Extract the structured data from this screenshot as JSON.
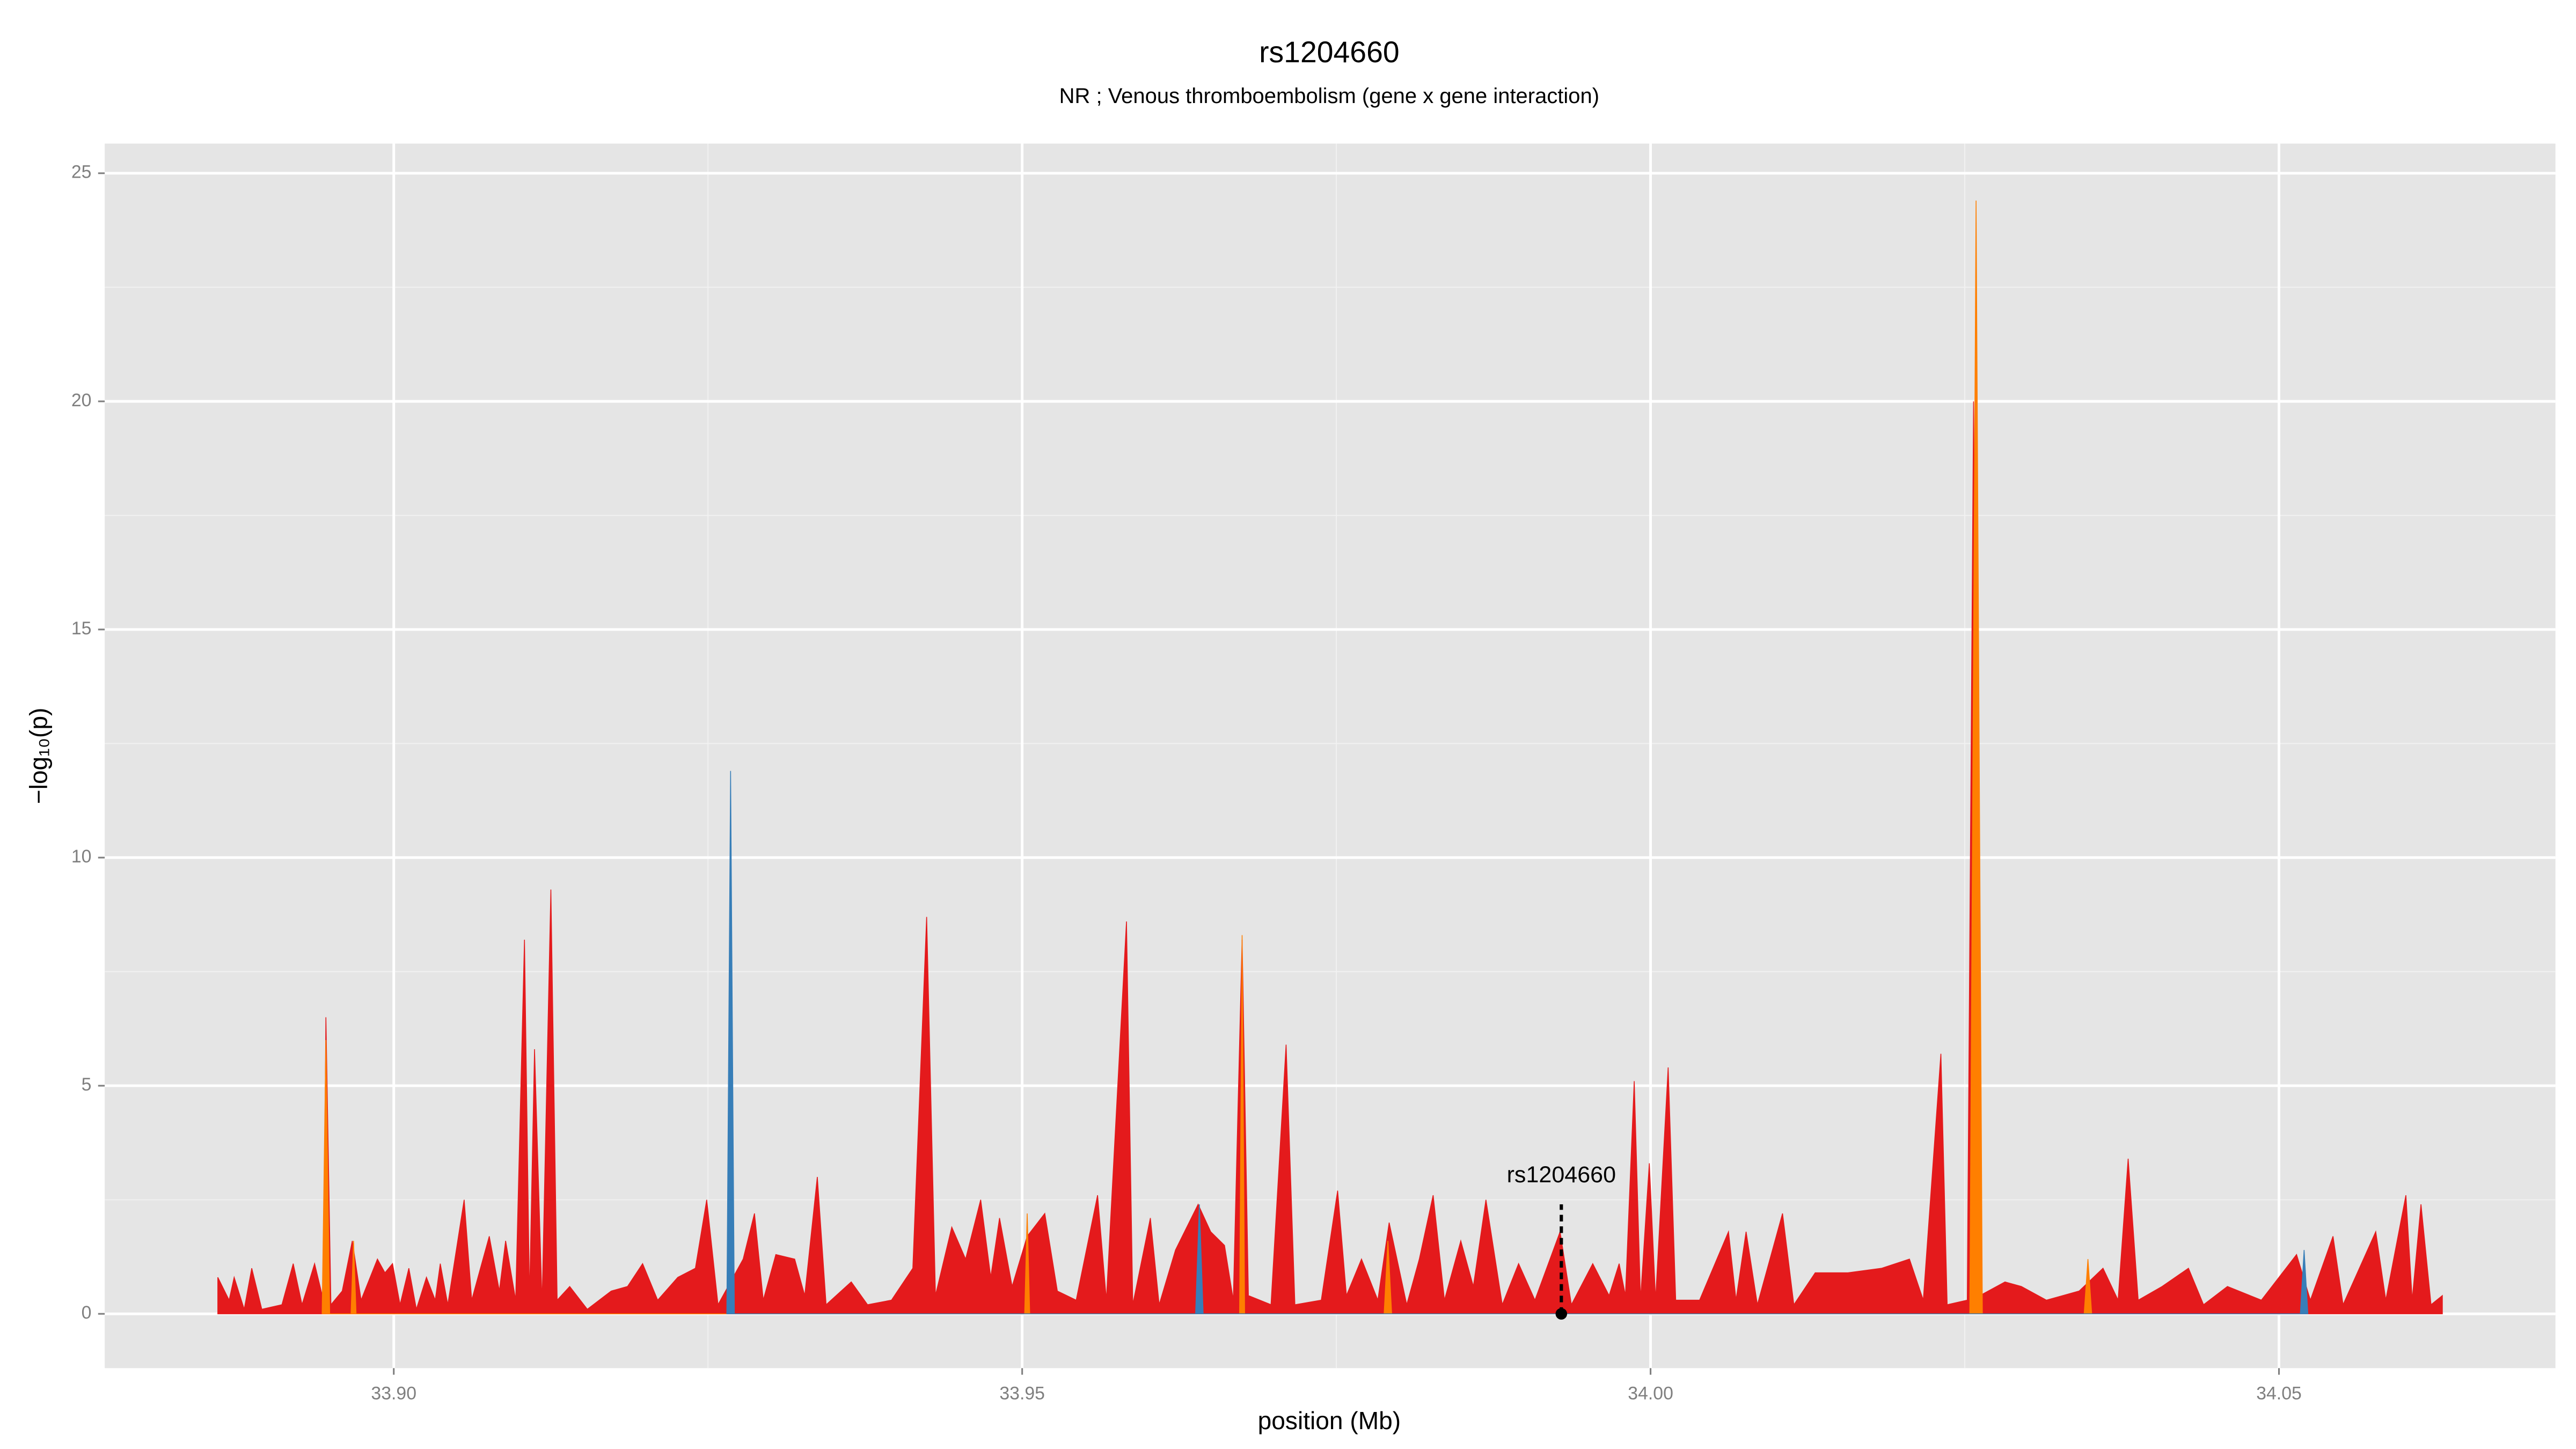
{
  "chart_data": {
    "type": "area",
    "title": "rs1204660",
    "subtitle": "NR ; Venous thromboembolism (gene x gene interaction)",
    "x_label": "position (Mb)",
    "y_label": "−log₁₀(p)",
    "xlim": [
      33.877,
      34.072
    ],
    "ylim": [
      -1.19,
      25.65
    ],
    "xticks": [
      {
        "value": 33.9,
        "label": "33.90"
      },
      33.95,
      {
        "value": 34.0,
        "label": "34.00"
      },
      34.05
    ],
    "yticks": [
      0,
      5,
      10,
      15,
      20,
      25
    ],
    "grid": true,
    "series": [
      {
        "color": "#e41a1c",
        "x": [
          33.886,
          33.8869,
          33.8873,
          33.8881,
          33.8887,
          33.8895,
          33.8911,
          33.892,
          33.8927,
          33.8937,
          33.8944,
          33.8946,
          33.895,
          33.8959,
          33.8967,
          33.8974,
          33.8987,
          33.8993,
          33.8999,
          33.9005,
          33.9012,
          33.9018,
          33.9026,
          33.9033,
          33.9037,
          33.9043,
          33.9056,
          33.9062,
          33.9076,
          33.9084,
          33.9089,
          33.9097,
          33.9104,
          33.9108,
          33.9112,
          33.9118,
          33.9125,
          33.913,
          33.914,
          33.9154,
          33.9173,
          33.9186,
          33.9198,
          33.921,
          33.9226,
          33.924,
          33.9249,
          33.9258,
          33.9278,
          33.9287,
          33.9294,
          33.9304,
          33.9319,
          33.9327,
          33.9337,
          33.9344,
          33.9364,
          33.9377,
          33.9396,
          33.9413,
          33.9424,
          33.9431,
          33.9444,
          33.9455,
          33.9467,
          33.9475,
          33.9482,
          33.9492,
          33.9504,
          33.9518,
          33.9528,
          33.9543,
          33.956,
          33.9567,
          33.9583,
          33.9588,
          33.9602,
          33.9609,
          33.9622,
          33.964,
          33.965,
          33.9661,
          33.9668,
          33.9675,
          33.968,
          33.9698,
          33.971,
          33.9717,
          33.9738,
          33.9751,
          33.9758,
          33.977,
          33.9783,
          33.9792,
          33.9806,
          33.9816,
          33.9827,
          33.9836,
          33.9849,
          33.9859,
          33.9869,
          33.9882,
          33.9895,
          33.9908,
          33.9928,
          33.9937,
          33.9954,
          33.9967,
          33.9975,
          33.998,
          33.9987,
          33.9992,
          33.9999,
          34.0004,
          34.0014,
          34.002,
          34.0039,
          34.0062,
          34.0068,
          34.0076,
          34.0085,
          34.0105,
          34.0114,
          34.0131,
          34.0157,
          34.0184,
          34.0206,
          34.0217,
          34.0231,
          34.0236,
          34.0252,
          34.0257,
          34.0262,
          34.0282,
          34.0295,
          34.0315,
          34.0341,
          34.036,
          34.0372,
          34.038,
          34.0388,
          34.0407,
          34.0428,
          34.044,
          34.0459,
          34.0486,
          34.0514,
          34.0525,
          34.0543,
          34.0551,
          34.0564,
          34.0577,
          34.0585,
          34.0601,
          34.0606,
          34.0613,
          34.0621,
          34.063
        ],
        "values": [
          0.8,
          0.3,
          0.8,
          0.1,
          1.0,
          0.1,
          0.2,
          1.1,
          0.2,
          1.1,
          0.3,
          6.5,
          0.2,
          0.5,
          1.6,
          0.3,
          1.2,
          0.9,
          1.1,
          0.2,
          1.0,
          0.1,
          0.8,
          0.3,
          1.1,
          0.2,
          2.5,
          0.3,
          1.7,
          0.5,
          1.6,
          0.3,
          8.2,
          0.3,
          5.8,
          0.2,
          9.3,
          0.3,
          0.6,
          0.1,
          0.5,
          0.6,
          1.1,
          0.3,
          0.8,
          1.0,
          2.5,
          0.2,
          1.2,
          2.2,
          0.3,
          1.3,
          1.2,
          0.4,
          3.0,
          0.2,
          0.7,
          0.2,
          0.3,
          1.0,
          8.7,
          0.4,
          1.9,
          1.2,
          2.5,
          0.8,
          2.1,
          0.6,
          1.7,
          2.2,
          0.5,
          0.3,
          2.6,
          0.3,
          8.6,
          0.2,
          2.1,
          0.2,
          1.4,
          2.4,
          1.8,
          1.5,
          0.3,
          8.2,
          0.4,
          0.2,
          5.9,
          0.2,
          0.3,
          2.7,
          0.4,
          1.2,
          0.3,
          2.0,
          0.2,
          1.2,
          2.6,
          0.3,
          1.6,
          0.6,
          2.5,
          0.2,
          1.1,
          0.3,
          1.8,
          0.2,
          1.1,
          0.4,
          1.1,
          0.4,
          5.1,
          0.3,
          3.3,
          0.3,
          5.4,
          0.3,
          0.3,
          1.8,
          0.3,
          1.8,
          0.2,
          2.2,
          0.2,
          0.9,
          0.9,
          1.0,
          1.2,
          0.3,
          5.7,
          0.2,
          0.3,
          20.0,
          0.4,
          0.7,
          0.6,
          0.3,
          0.5,
          1.0,
          0.3,
          3.4,
          0.3,
          0.6,
          1.0,
          0.2,
          0.6,
          0.3,
          1.3,
          0.3,
          1.7,
          0.2,
          1.0,
          1.8,
          0.3,
          2.6,
          0.3,
          2.4,
          0.2,
          0.4
        ]
      },
      {
        "color": "#ff7f00",
        "x": [
          33.8943,
          33.8946,
          33.8949,
          33.8966,
          33.8968,
          33.897,
          33.9502,
          33.9504,
          33.9506,
          33.9673,
          33.9675,
          33.9677,
          33.9788,
          33.9791,
          33.9794,
          34.0254,
          34.0259,
          34.0264,
          34.0345,
          34.0348,
          34.0351
        ],
        "values": [
          0,
          6.0,
          0,
          0,
          1.6,
          0,
          0,
          2.2,
          0,
          0,
          8.3,
          0,
          0,
          1.6,
          0,
          0,
          24.4,
          0,
          0,
          1.2,
          0
        ]
      },
      {
        "color": "#377eb8",
        "x": [
          33.9265,
          33.9268,
          33.9271,
          33.9638,
          33.9641,
          33.9644,
          34.0517,
          34.052,
          34.0523
        ],
        "values": [
          0,
          11.9,
          0,
          0,
          2.4,
          0,
          0,
          1.4,
          0
        ]
      }
    ],
    "annotation": {
      "label": "rs1204660",
      "x": 33.9929,
      "y": 0,
      "line_top": 2.4
    }
  }
}
